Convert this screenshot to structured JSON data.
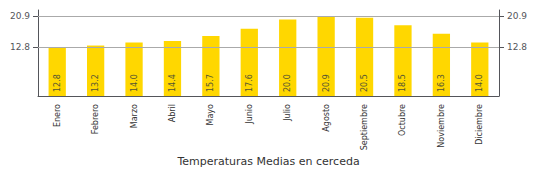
{
  "chart_data": {
    "type": "bar",
    "title": "Temperaturas Medias en cerceda",
    "categories": [
      "Enero",
      "Febrero",
      "Marzo",
      "Abril",
      "Mayo",
      "Junio",
      "Julio",
      "Agosto",
      "Septiembre",
      "Octubre",
      "Noviembre",
      "Diciembre"
    ],
    "values": [
      12.8,
      13.2,
      14.0,
      14.4,
      15.7,
      17.6,
      20.0,
      20.9,
      20.5,
      18.5,
      16.3,
      14.0
    ],
    "value_labels": [
      "12.8",
      "13.2",
      "14.0",
      "14.4",
      "15.7",
      "17.6",
      "20.0",
      "20.9",
      "20.5",
      "18.5",
      "16.3",
      "14.0"
    ],
    "color": "#FFD700",
    "ylim": [
      0,
      22.5
    ],
    "yticks": [
      12.8,
      20.9
    ],
    "y2lim": [
      0,
      22.5
    ],
    "y2ticks": [
      12.8,
      20.9
    ],
    "grid": true,
    "data_labels": true
  }
}
